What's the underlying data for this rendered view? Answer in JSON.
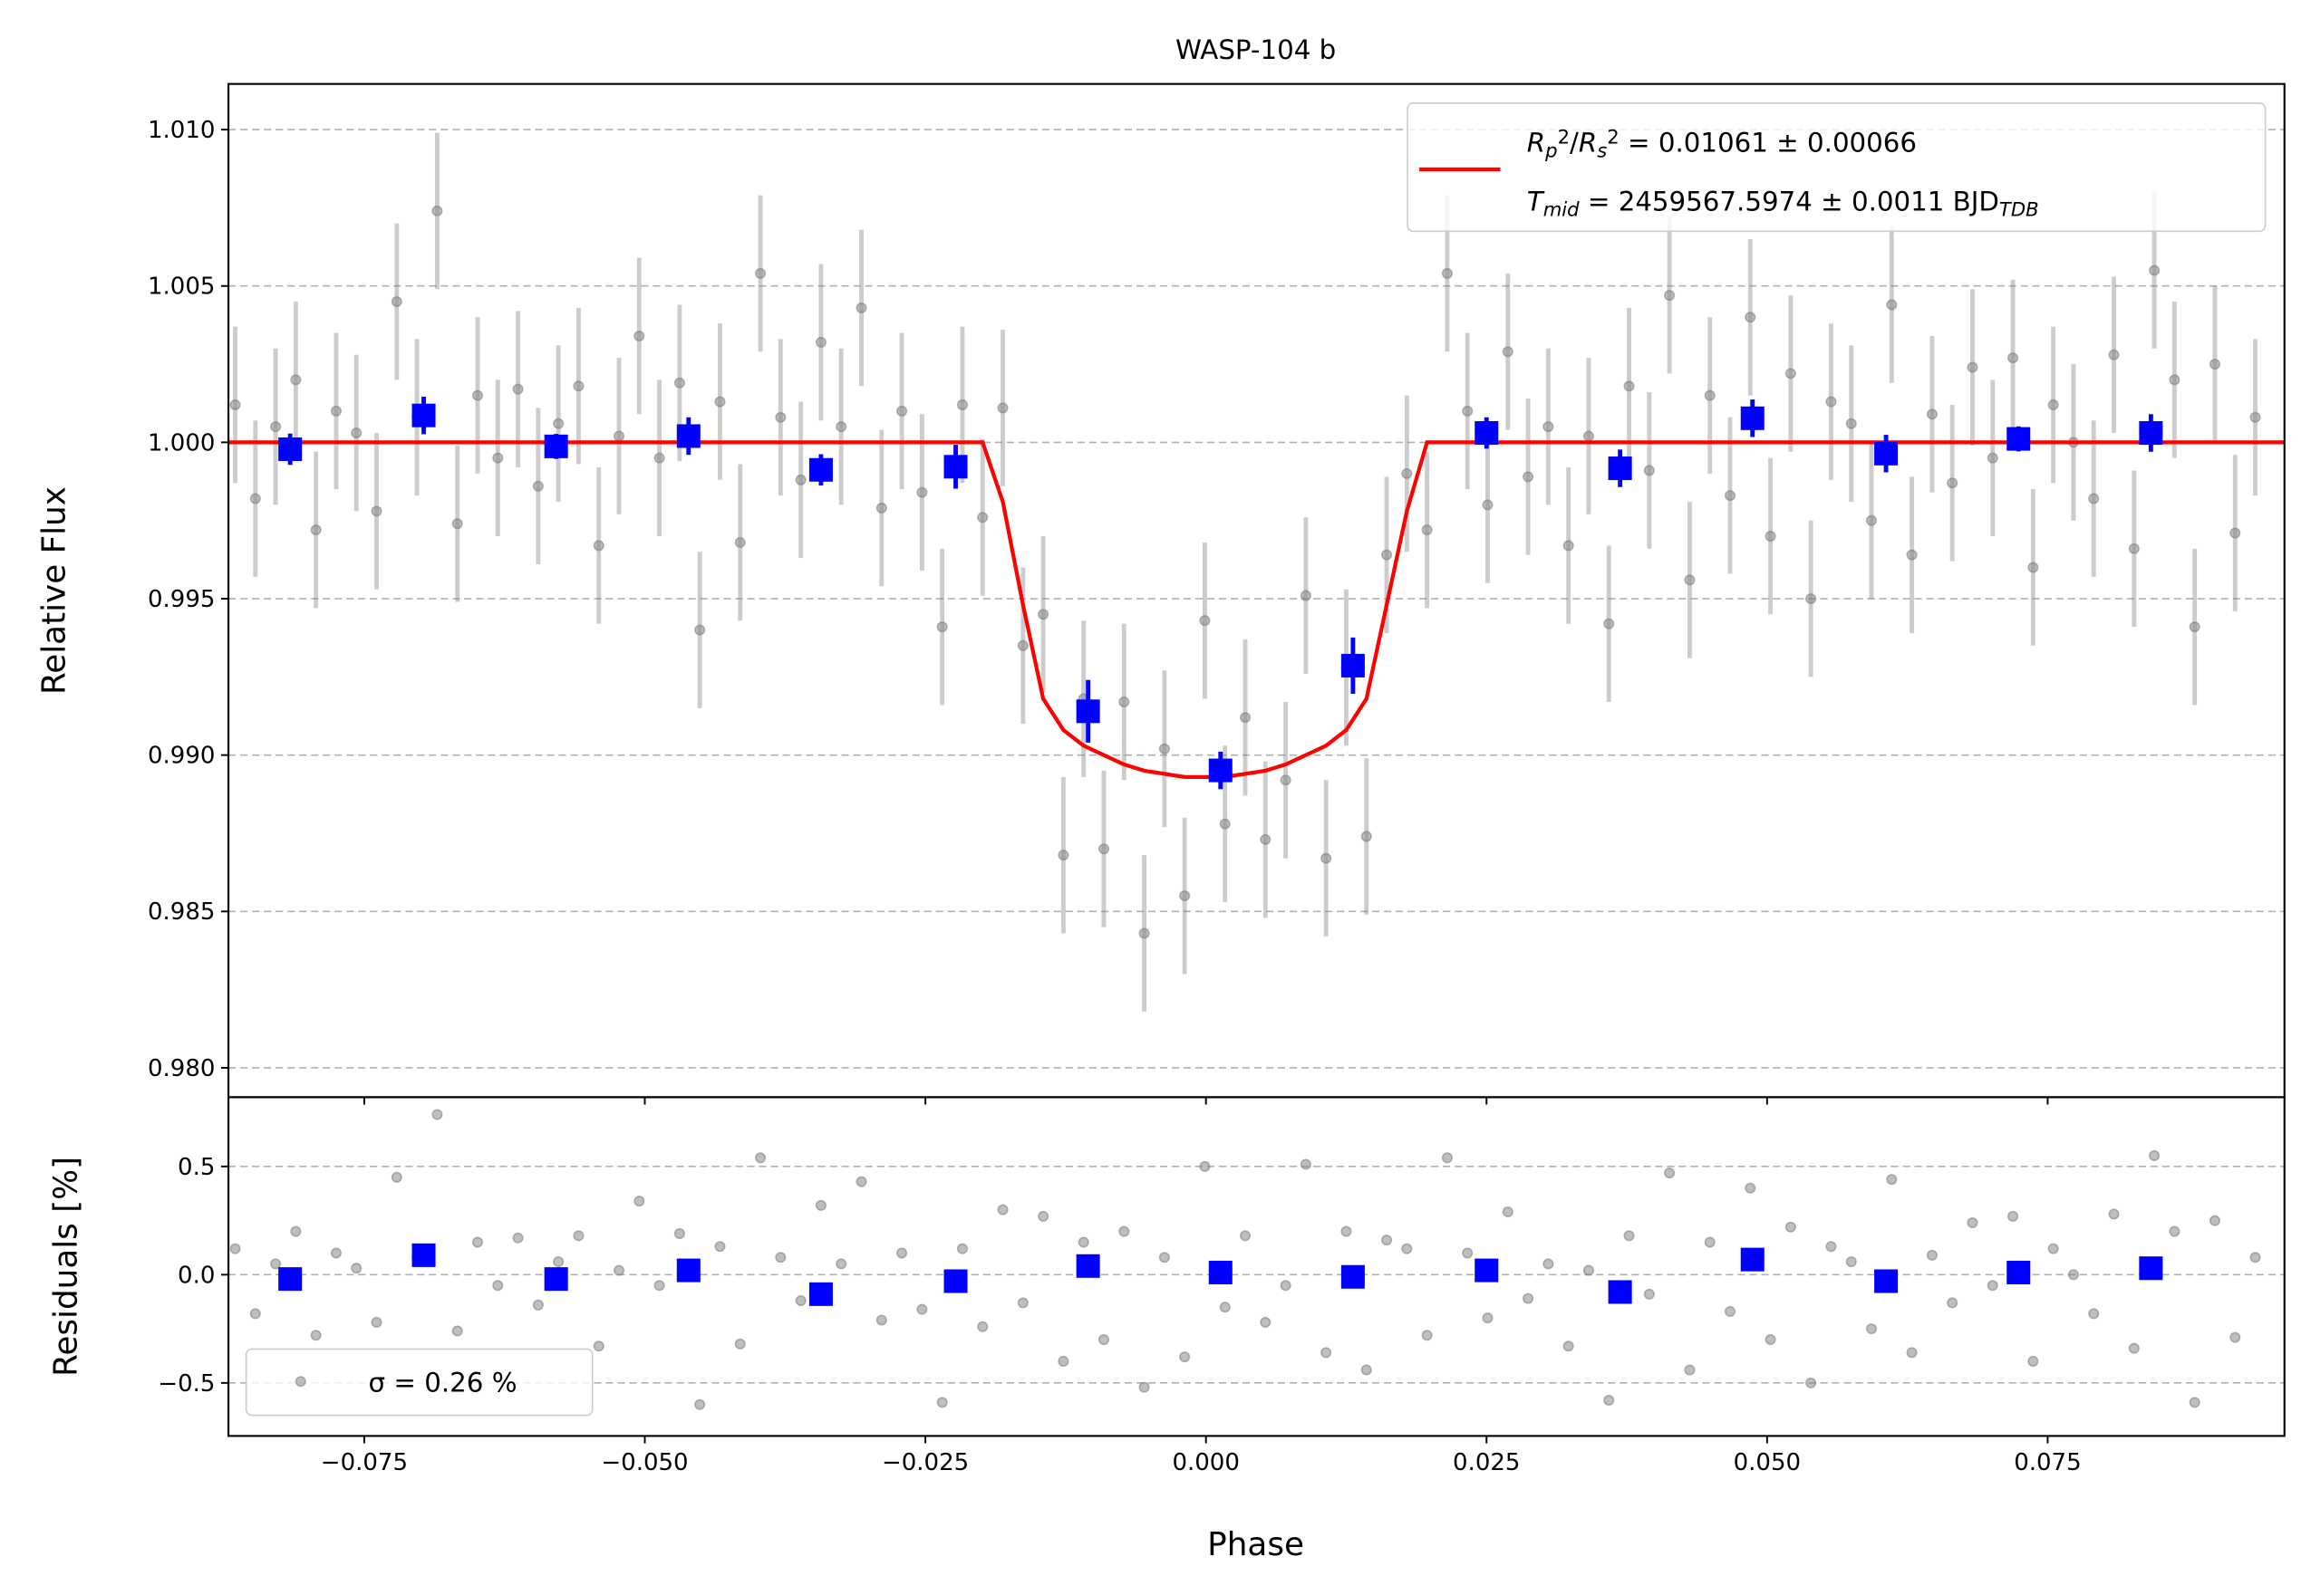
{
  "chart_data": [
    {
      "type": "scatter",
      "title": "WASP-104 b",
      "ylabel": "Relative Flux",
      "ylim": [
        0.97906,
        1.01146
      ],
      "yticks": [
        {
          "value": 0.98,
          "label": "0.980"
        },
        0.985,
        {
          "value": 0.99,
          "label": "0.990"
        },
        0.995,
        {
          "value": 1.0,
          "label": "1.000"
        },
        1.005,
        {
          "value": 1.01,
          "label": "1.010"
        }
      ],
      "grid": true,
      "legend": "upper right",
      "series": [
        {
          "kind": "points",
          "color": "#808080",
          "error": 0.0025,
          "x": [
            -0.0865,
            -0.0847,
            -0.0829,
            -0.0811,
            -0.0793,
            -0.0775,
            -0.0757,
            -0.0739,
            -0.0721,
            -0.0703,
            -0.0685,
            -0.0667,
            -0.0649,
            -0.0631,
            -0.0613,
            -0.0595,
            -0.0577,
            -0.0559,
            -0.0541,
            -0.0523,
            -0.0505,
            -0.0487,
            -0.0469,
            -0.0451,
            -0.0433,
            -0.0415,
            -0.0397,
            -0.0379,
            -0.0361,
            -0.0343,
            -0.0325,
            -0.0307,
            -0.0289,
            -0.0271,
            -0.0253,
            -0.0235,
            -0.0217,
            -0.0199,
            -0.0181,
            -0.0163,
            -0.0145,
            -0.0127,
            -0.0109,
            -0.0091,
            -0.0073,
            -0.0055,
            -0.0037,
            -0.0019,
            -0.0001,
            0.0017,
            0.0035,
            0.0053,
            0.0071,
            0.0089,
            0.0107,
            0.0125,
            0.0143,
            0.0161,
            0.0179,
            0.0197,
            0.0215,
            0.0233,
            0.0251,
            0.0269,
            0.0287,
            0.0305,
            0.0323,
            0.0341,
            0.0359,
            0.0377,
            0.0395,
            0.0413,
            0.0431,
            0.0449,
            0.0467,
            0.0485,
            0.0503,
            0.0521,
            0.0539,
            0.0557,
            0.0575,
            0.0593,
            0.0611,
            0.0629,
            0.0647,
            0.0665,
            0.0683,
            0.0701,
            0.0719,
            0.0737,
            0.0755,
            0.0773,
            0.0791,
            0.0809,
            0.0827,
            0.0845,
            0.0863,
            0.0881,
            0.0899,
            0.0917,
            0.0935
          ],
          "values": [
            1.0012,
            0.9982,
            1.0005,
            1.002,
            0.9972,
            1.001,
            1.0003,
            0.9978,
            1.0045,
            1.0008,
            1.0074,
            0.9974,
            1.0015,
            0.9995,
            1.0017,
            0.9986,
            1.0006,
            1.0018,
            0.9967,
            1.0002,
            1.0034,
            0.9995,
            1.0019,
            0.994,
            1.0013,
            0.9968,
            1.0054,
            1.0008,
            0.9988,
            1.0032,
            1.0005,
            1.0043,
            0.9979,
            1.001,
            0.9984,
            0.9941,
            1.0012,
            0.9976,
            1.0011,
            0.9935,
            0.9945,
            0.9868,
            0.9918,
            0.987,
            0.9917,
            0.9843,
            0.9902,
            0.9855,
            0.9943,
            0.9878,
            0.9912,
            0.9873,
            0.9892,
            0.9951,
            0.9867,
            0.9928,
            0.9874,
            0.9964,
            0.999,
            0.9972,
            1.0054,
            1.001,
            0.998,
            1.0029,
            0.9989,
            1.0005,
            0.9967,
            1.0002,
            0.9942,
            1.0018,
            0.9991,
            1.0047,
            0.9956,
            1.0015,
            0.9983,
            1.004,
            0.997,
            1.0022,
            0.995,
            1.0013,
            1.0006,
            0.9975,
            1.0044,
            0.9964,
            1.0009,
            0.9987,
            1.0024,
            0.9995,
            1.0027,
            0.996,
            1.0012,
            1.0,
            0.9982,
            1.0028,
            0.9966,
            1.0055,
            1.002,
            0.9941,
            1.0025,
            0.9971,
            1.0008
          ]
        },
        {
          "kind": "line",
          "color": "#ff0000",
          "label_lines": [
            [
              {
                "text": "R",
                "style": "italic"
              },
              {
                "text": "p",
                "style": "subscript"
              },
              {
                "text": "2",
                "style": "superscript"
              },
              {
                "text": "/",
                "style": "plain"
              },
              {
                "text": "R",
                "style": "italic"
              },
              {
                "text": "s",
                "style": "subscript"
              },
              {
                "text": "2",
                "style": "superscript"
              },
              {
                "text": " = 0.01061 ± 0.00066",
                "style": "plain"
              }
            ],
            [
              {
                "text": "T",
                "style": "italic"
              },
              {
                "text": "mid",
                "style": "subscript"
              },
              {
                "text": " = 2459567.5974 ± 0.0011 BJD",
                "style": "plain"
              },
              {
                "text": "TDB",
                "style": "subscript"
              }
            ]
          ],
          "x": [
            -0.0871,
            -0.0199,
            -0.0181,
            -0.0163,
            -0.0145,
            -0.0127,
            -0.0109,
            -0.0091,
            -0.0073,
            -0.0055,
            -0.0037,
            -0.0019,
            -0.0001,
            0.0017,
            0.0035,
            0.0053,
            0.0071,
            0.0089,
            0.0107,
            0.0125,
            0.0143,
            0.0161,
            0.0179,
            0.0197,
            0.0961
          ],
          "values": [
            1.0,
            1.0,
            0.9981,
            0.9948,
            0.9918,
            0.9908,
            0.9903,
            0.99,
            0.9897,
            0.9895,
            0.9894,
            0.9893,
            0.9893,
            0.9893,
            0.9894,
            0.9895,
            0.9897,
            0.99,
            0.9903,
            0.9908,
            0.9918,
            0.9948,
            0.9978,
            1.0,
            1.0
          ]
        },
        {
          "kind": "binned",
          "color": "#0000ff",
          "x": [
            -0.0816,
            -0.0697,
            -0.0579,
            -0.0461,
            -0.0343,
            -0.0223,
            -0.0105,
            0.0013,
            0.0131,
            0.025,
            0.0369,
            0.0487,
            0.0606,
            0.0724,
            0.0842
          ],
          "values": [
            0.99978,
            1.00086,
            0.99987,
            1.0002,
            0.99912,
            0.99922,
            0.9914,
            0.98951,
            0.99286,
            1.0003,
            0.99917,
            1.00077,
            0.99964,
            1.00011,
            1.0003
          ],
          "errors": [
            0.0005,
            0.0006,
            0.0004,
            0.0006,
            0.0005,
            0.0007,
            0.001,
            0.0006,
            0.0009,
            0.0005,
            0.0006,
            0.0006,
            0.0006,
            0.0004,
            0.0006
          ]
        }
      ]
    },
    {
      "type": "scatter",
      "xlabel": "Phase",
      "ylabel": "Residuals [%]",
      "xlim": [
        -0.0871,
        0.0961
      ],
      "xticks": [
        {
          "value": -0.075,
          "label": "−0.075"
        },
        {
          "value": -0.05,
          "label": "−0.050"
        },
        {
          "value": -0.025,
          "label": "−0.025"
        },
        {
          "value": 0,
          "label": "0.000"
        },
        0.025,
        {
          "value": 0.05,
          "label": "0.050"
        },
        0.075
      ],
      "ylim": [
        -0.745,
        0.82
      ],
      "yticks": [
        {
          "value": -0.5,
          "label": "−0.5"
        },
        {
          "value": 0,
          "label": "0.0"
        },
        0.5
      ],
      "grid": true,
      "legend": "lower left",
      "series": [
        {
          "kind": "points",
          "name": "σ = 0.26 %",
          "color": "#808080",
          "values": [
            0.12,
            -0.18,
            0.05,
            0.2,
            -0.28,
            0.1,
            0.03,
            -0.22,
            0.45,
            0.08,
            0.74,
            -0.26,
            0.15,
            -0.05,
            0.17,
            -0.14,
            0.06,
            0.18,
            -0.33,
            0.02,
            0.34,
            -0.05,
            0.19,
            -0.6,
            0.13,
            -0.32,
            0.54,
            0.08,
            -0.12,
            0.32,
            0.05,
            0.43,
            -0.21,
            0.1,
            -0.16,
            -0.59,
            0.12,
            -0.24,
            0.3,
            -0.13,
            0.27,
            -0.4,
            0.15,
            -0.3,
            0.2,
            -0.52,
            0.08,
            -0.38,
            0.5,
            -0.15,
            0.18,
            -0.22,
            -0.05,
            0.51,
            -0.36,
            0.2,
            -0.44,
            0.16,
            0.12,
            -0.28,
            0.54,
            0.1,
            -0.2,
            0.29,
            -0.11,
            0.05,
            -0.33,
            0.02,
            -0.58,
            0.18,
            -0.09,
            0.47,
            -0.44,
            0.15,
            -0.17,
            0.4,
            -0.3,
            0.22,
            -0.5,
            0.13,
            0.06,
            -0.25,
            0.44,
            -0.36,
            0.09,
            -0.13,
            0.24,
            -0.05,
            0.27,
            -0.4,
            0.12,
            0.0,
            -0.18,
            0.28,
            -0.34,
            0.55,
            0.2,
            -0.59,
            0.25,
            -0.29,
            0.08
          ]
        },
        {
          "kind": "binned",
          "color": "#0000ff",
          "values": [
            -0.02,
            0.09,
            -0.02,
            0.02,
            -0.09,
            -0.03,
            0.04,
            0.01,
            -0.01,
            0.02,
            -0.08,
            0.07,
            -0.03,
            0.01,
            0.03
          ]
        }
      ]
    }
  ]
}
